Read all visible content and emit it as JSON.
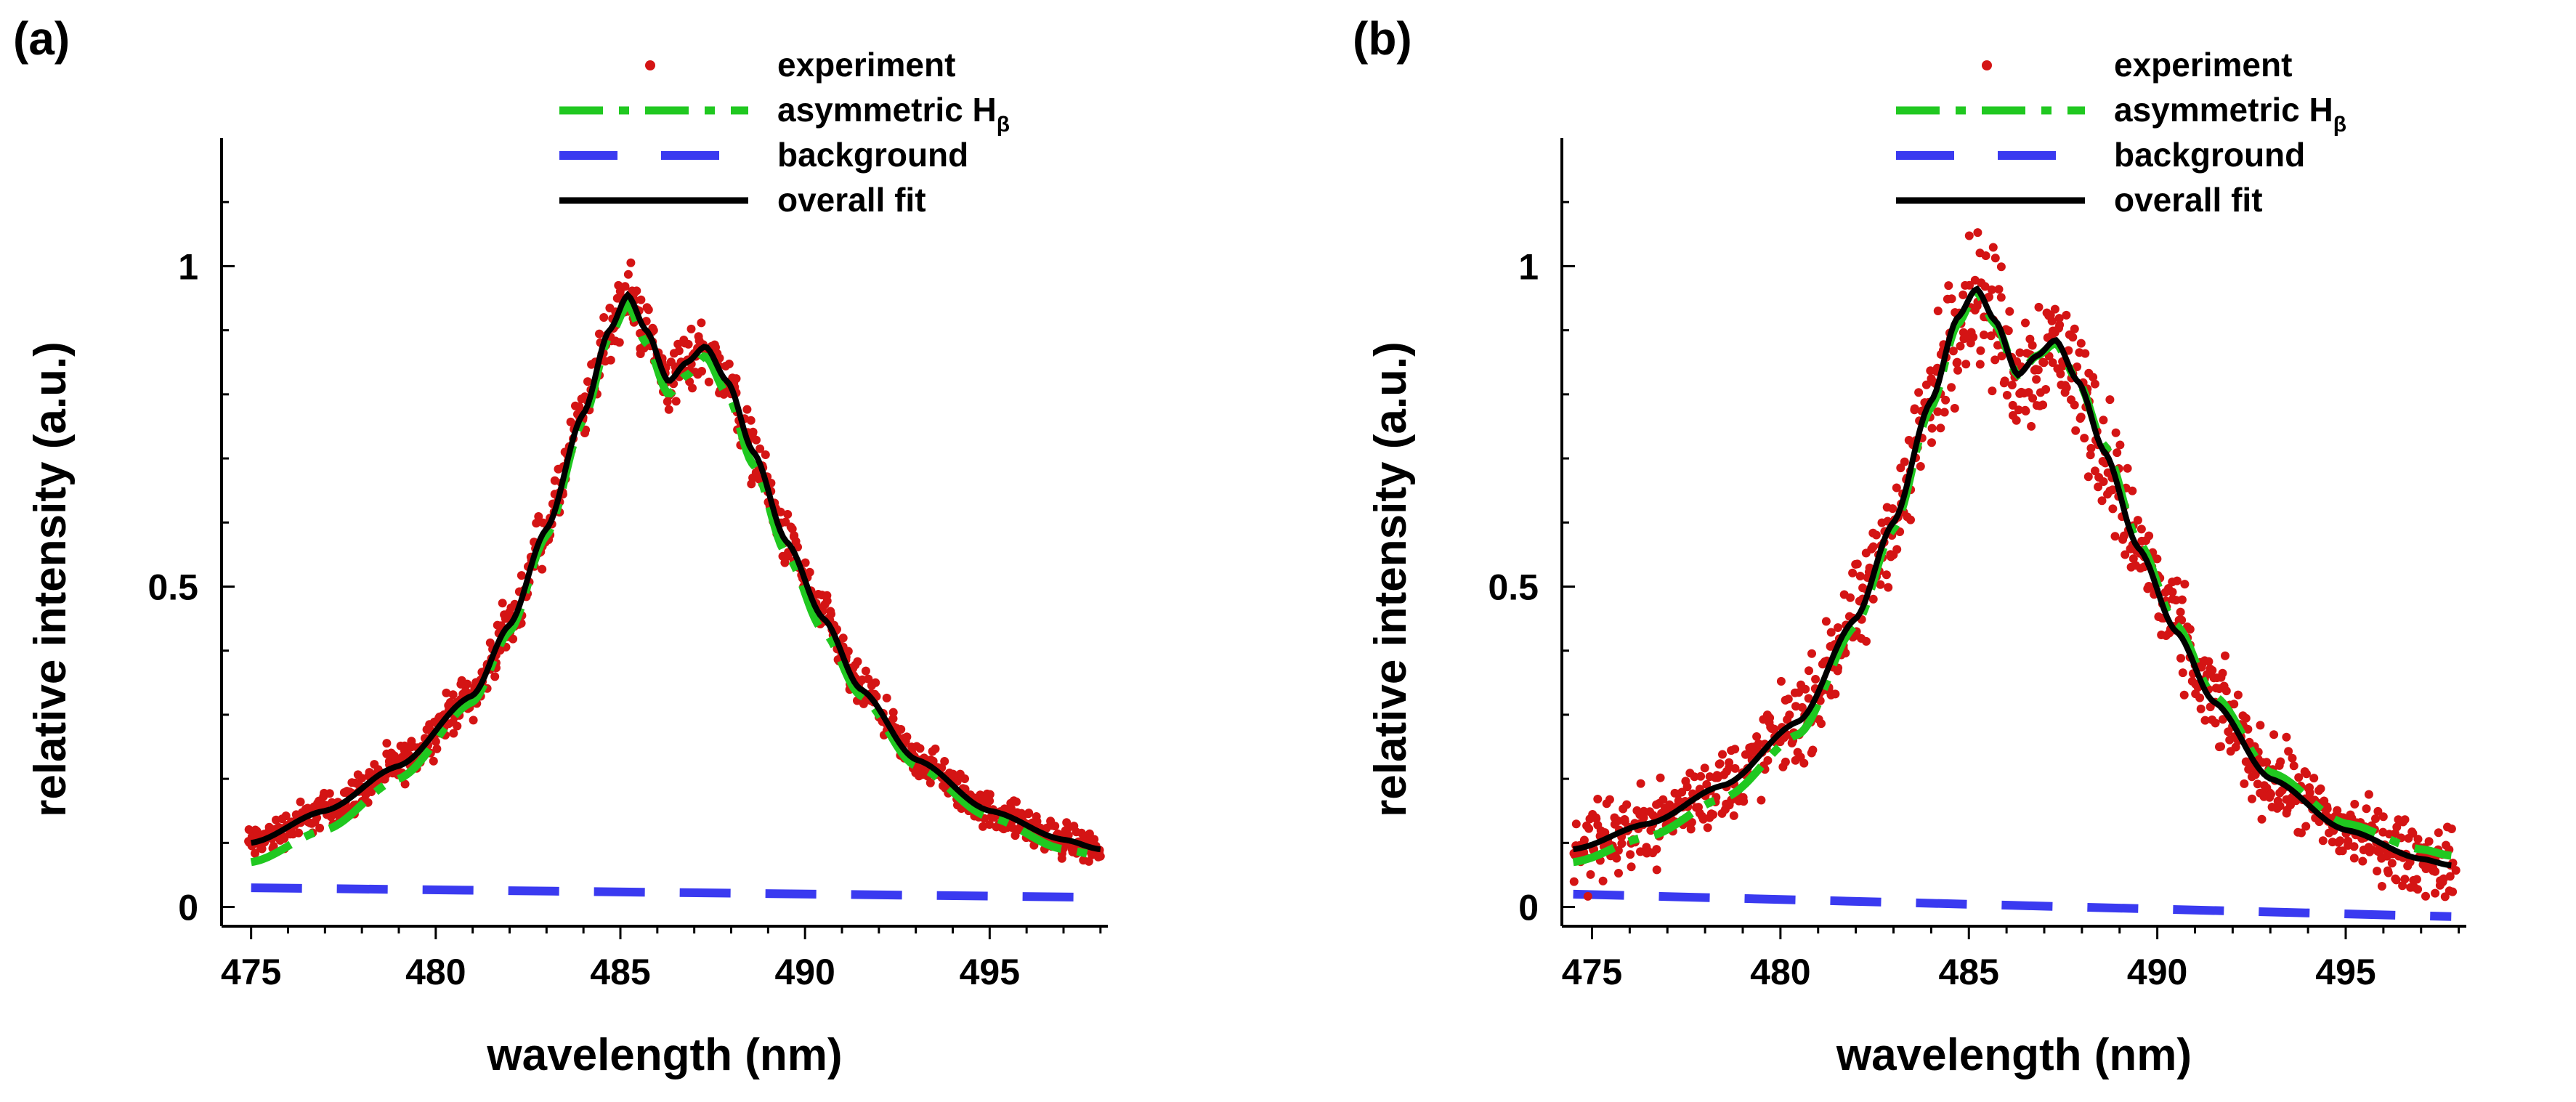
{
  "chart_data": [
    {
      "type": "scatter",
      "panel_label": "(a)",
      "xlabel": "wavelength (nm)",
      "ylabel": "relative intensity (a.u.)",
      "xlim": [
        474.2,
        498.2
      ],
      "ylim": [
        -0.03,
        1.2
      ],
      "xticks": [
        475,
        480,
        485,
        490,
        495
      ],
      "xtick_labels": [
        "475",
        "480",
        "485",
        "490",
        "495"
      ],
      "yticks": [
        0,
        0.5,
        1
      ],
      "ytick_labels": [
        "0",
        "0.5",
        "1"
      ],
      "legend": {
        "placement": "top-right",
        "entries": [
          {
            "key": "experiment",
            "label": "experiment",
            "sub": ""
          },
          {
            "key": "asym",
            "label": "asymmetric H",
            "sub": "β"
          },
          {
            "key": "background",
            "label": "background",
            "sub": ""
          },
          {
            "key": "fit",
            "label": "overall fit",
            "sub": ""
          }
        ]
      },
      "series": [
        {
          "name": "experiment",
          "style": "points",
          "x_range": [
            474.9,
            498.0
          ],
          "noise": 0.012
        },
        {
          "name": "asymmetric Hβ",
          "style": "dashdot",
          "x": [
            475,
            477,
            479,
            481,
            482,
            483,
            484,
            484.7,
            485.2,
            485.7,
            486.3,
            486.8,
            487.3,
            487.9,
            488.6,
            489.5,
            490.5,
            491.5,
            493,
            495,
            497,
            498
          ],
          "y": [
            0.07,
            0.12,
            0.2,
            0.32,
            0.43,
            0.58,
            0.76,
            0.89,
            0.94,
            0.88,
            0.8,
            0.83,
            0.86,
            0.8,
            0.69,
            0.55,
            0.43,
            0.33,
            0.22,
            0.14,
            0.09,
            0.08
          ]
        },
        {
          "name": "background",
          "style": "dashed",
          "x": [
            475,
            498
          ],
          "y": [
            0.03,
            0.015
          ]
        },
        {
          "name": "overall fit",
          "style": "solid",
          "x": [
            475,
            477,
            479,
            481,
            482,
            483,
            484,
            484.7,
            485.2,
            485.7,
            486.3,
            486.8,
            487.3,
            487.9,
            488.6,
            489.5,
            490.5,
            491.5,
            493,
            495,
            497,
            498
          ],
          "y": [
            0.1,
            0.15,
            0.22,
            0.33,
            0.44,
            0.59,
            0.77,
            0.9,
            0.955,
            0.9,
            0.82,
            0.85,
            0.875,
            0.82,
            0.71,
            0.57,
            0.45,
            0.34,
            0.23,
            0.15,
            0.105,
            0.09
          ]
        }
      ],
      "colors": {
        "experiment": "#d41414",
        "asym": "#20c820",
        "background": "#3a3af0",
        "fit": "#000000"
      }
    },
    {
      "type": "scatter",
      "panel_label": "(b)",
      "xlabel": "wavelength (nm)",
      "ylabel": "relative intensity (a.u.)",
      "xlim": [
        474.2,
        498.2
      ],
      "ylim": [
        -0.03,
        1.2
      ],
      "xticks": [
        475,
        480,
        485,
        490,
        495
      ],
      "xtick_labels": [
        "475",
        "480",
        "485",
        "490",
        "495"
      ],
      "yticks": [
        0,
        0.5,
        1
      ],
      "ytick_labels": [
        "0",
        "0.5",
        "1"
      ],
      "legend": {
        "placement": "top-right",
        "entries": [
          {
            "key": "experiment",
            "label": "experiment",
            "sub": ""
          },
          {
            "key": "asym",
            "label": "asymmetric H",
            "sub": "β"
          },
          {
            "key": "background",
            "label": "background",
            "sub": ""
          },
          {
            "key": "fit",
            "label": "overall fit",
            "sub": ""
          }
        ]
      },
      "series": [
        {
          "name": "experiment",
          "style": "points",
          "x_range": [
            474.5,
            497.9
          ],
          "noise": 0.025
        },
        {
          "name": "asymmetric Hβ",
          "style": "dashdot",
          "x": [
            474.5,
            476.5,
            478.5,
            480.5,
            482,
            483,
            484,
            484.7,
            485.2,
            485.7,
            486.3,
            486.8,
            487.3,
            487.9,
            488.6,
            489.5,
            490.5,
            491.5,
            493,
            495,
            497,
            497.8
          ],
          "y": [
            0.07,
            0.11,
            0.17,
            0.27,
            0.44,
            0.59,
            0.78,
            0.91,
            0.96,
            0.91,
            0.83,
            0.86,
            0.88,
            0.82,
            0.72,
            0.57,
            0.44,
            0.33,
            0.21,
            0.13,
            0.09,
            0.08
          ]
        },
        {
          "name": "background",
          "style": "dashed",
          "x": [
            474.5,
            497.8
          ],
          "y": [
            0.02,
            -0.015
          ]
        },
        {
          "name": "overall fit",
          "style": "solid",
          "x": [
            474.5,
            476.5,
            478.5,
            480.5,
            482,
            483,
            484,
            484.7,
            485.2,
            485.7,
            486.3,
            486.8,
            487.3,
            487.9,
            488.6,
            489.5,
            490.5,
            491.5,
            493,
            495,
            497,
            497.8
          ],
          "y": [
            0.09,
            0.13,
            0.19,
            0.29,
            0.45,
            0.6,
            0.79,
            0.92,
            0.965,
            0.915,
            0.83,
            0.86,
            0.885,
            0.82,
            0.71,
            0.56,
            0.43,
            0.32,
            0.2,
            0.12,
            0.075,
            0.065
          ]
        }
      ],
      "colors": {
        "experiment": "#d41414",
        "asym": "#20c820",
        "background": "#3a3af0",
        "fit": "#000000"
      }
    }
  ]
}
